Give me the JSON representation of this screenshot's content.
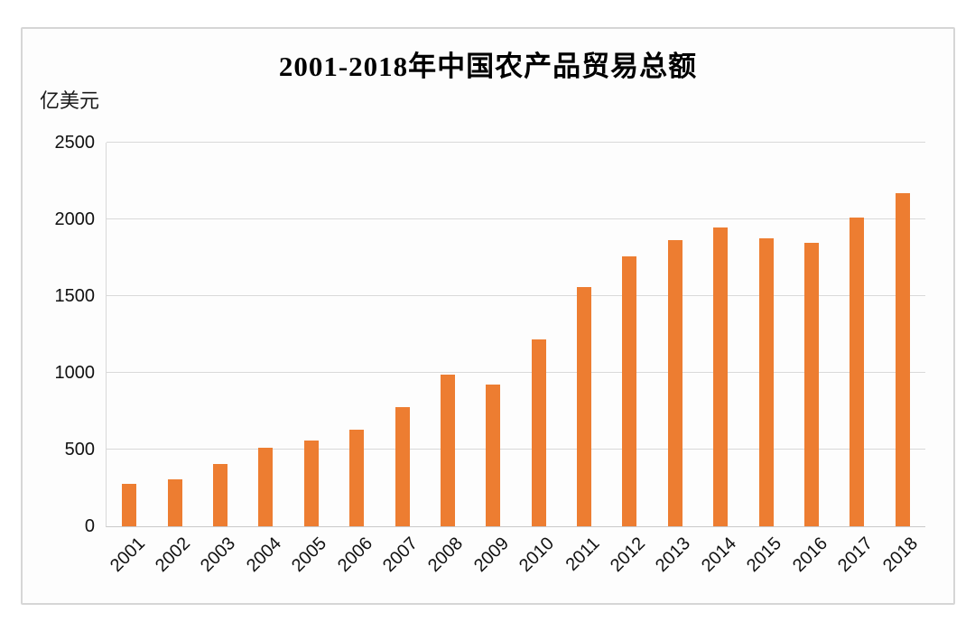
{
  "page": {
    "background_color": "#ffffff",
    "card_background_color": "#fdfdfd",
    "card_border_color": "#d6d6d6"
  },
  "chart_data": {
    "type": "bar",
    "title": "2001-2018年中国农产品贸易总额",
    "unit_label": "亿美元",
    "ylabel": "亿美元",
    "xlabel": "",
    "categories": [
      "2001",
      "2002",
      "2003",
      "2004",
      "2005",
      "2006",
      "2007",
      "2008",
      "2009",
      "2010",
      "2011",
      "2012",
      "2013",
      "2014",
      "2015",
      "2016",
      "2017",
      "2018"
    ],
    "values": [
      279,
      306,
      404,
      514,
      558,
      630,
      776,
      986,
      921,
      1219,
      1556,
      1757,
      1867,
      1945,
      1876,
      1846,
      2014,
      2168
    ],
    "ylim": [
      0,
      2500
    ],
    "yticks": [
      0,
      500,
      1000,
      1500,
      2000,
      2500
    ],
    "grid": "on",
    "legend": "none",
    "bar_color": "#ED7D31",
    "grid_color": "#d9d9d9",
    "axis_color": "#c9c9c9",
    "text_color": "#111111"
  }
}
